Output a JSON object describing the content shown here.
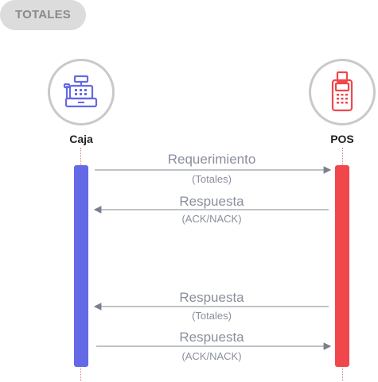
{
  "badge": {
    "label": "TOTALES"
  },
  "actors": {
    "left": {
      "label": "Caja",
      "icon": "cash-register-icon",
      "color": "#6469e6"
    },
    "right": {
      "label": "POS",
      "icon": "pos-terminal-icon",
      "color": "#f0474c"
    }
  },
  "messages": [
    {
      "title": "Requerimiento",
      "subtitle": "(Totales)",
      "direction": "right"
    },
    {
      "title": "Respuesta",
      "subtitle": "(ACK/NACK)",
      "direction": "left"
    },
    {
      "title": "Respuesta",
      "subtitle": "(Totales)",
      "direction": "left"
    },
    {
      "title": "Respuesta",
      "subtitle": "(ACK/NACK)",
      "direction": "right"
    }
  ]
}
